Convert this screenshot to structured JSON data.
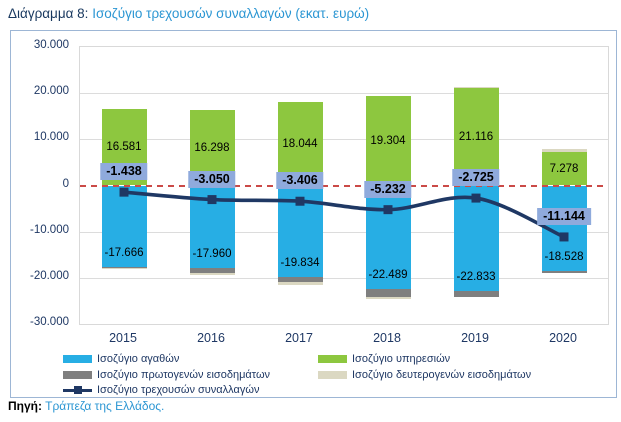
{
  "title": {
    "prefix": "Διάγραμμα 8:",
    "main": "Ισοζύγιο τρεχουσών συναλλαγών (εκατ. ευρώ)"
  },
  "source": {
    "label": "Πηγή:",
    "link": "Τράπεζα της Ελλάδος."
  },
  "chart_data": {
    "type": "bar",
    "subtype": "stacked-bars-with-line-overlay",
    "title": "Ισοζύγιο τρεχουσών συναλλαγών (εκατ. ευρώ)",
    "categories": [
      "2015",
      "2016",
      "2017",
      "2018",
      "2019",
      "2020"
    ],
    "series": [
      {
        "key": "goods",
        "name": "Ισοζύγιο αγαθών",
        "kind": "bar",
        "color": "#27AEE4",
        "values": [
          -17666,
          -17960,
          -19834,
          -22489,
          -22833,
          -18528
        ],
        "show_labels": true,
        "label_position": "inside-end"
      },
      {
        "key": "services",
        "name": "Ισοζύγιο υπηρεσιών",
        "kind": "bar",
        "color": "#8DC73F",
        "values": [
          16581,
          16298,
          18044,
          19304,
          21116,
          7278
        ],
        "show_labels": true,
        "label_position": "center"
      },
      {
        "key": "primary-income",
        "name": "Ισοζύγιο πρωτογενών εισοδημάτων",
        "kind": "bar",
        "color": "#7F7F7F",
        "values": [
          -100,
          -900,
          -1000,
          -1600,
          -1310,
          -450
        ],
        "show_labels": false,
        "estimated": true
      },
      {
        "key": "secondary-income",
        "name": "Ισοζύγιο δευτερογενών εισοδημάτων",
        "kind": "bar",
        "color": "#DBD8C2",
        "values": [
          -253,
          -488,
          -616,
          -447,
          302,
          556
        ],
        "show_labels": false,
        "estimated": true
      },
      {
        "key": "current-account",
        "name": "Ισοζύγιο τρεχουσών συναλλαγών",
        "kind": "line",
        "color": "#1F3864",
        "values": [
          -1438,
          -3050,
          -3406,
          -5232,
          -2725,
          -11144
        ],
        "show_labels": true,
        "label_bg": "#8FAADC"
      }
    ],
    "y_axis": {
      "min": -30000,
      "max": 30000,
      "step": 10000,
      "tick_values": [
        30000,
        20000,
        10000,
        0,
        -10000,
        -20000,
        -30000
      ],
      "tick_labels": [
        "30.000",
        "20.000",
        "10.000",
        "0",
        "-10.000",
        "-20.000",
        "-30.000"
      ]
    },
    "zero_line": {
      "style": "dashed",
      "color": "#CB4A47"
    },
    "grid": true,
    "legend_position": "bottom"
  }
}
